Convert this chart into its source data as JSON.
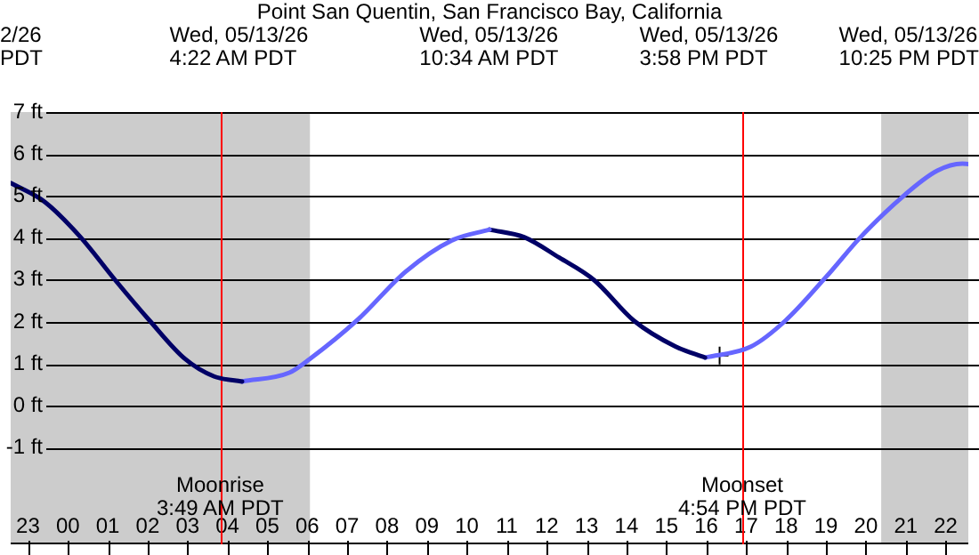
{
  "chart_data": {
    "type": "line",
    "title": "Point San Quentin, San Francisco Bay, California",
    "xlim": [
      "--05-12T22:34",
      "--05-13T22:34"
    ],
    "ylim": [
      -3.3,
      7
    ],
    "xticks": [
      {
        "value": "--05-12T23:00",
        "label": "23"
      },
      {
        "value": "--05-13T00:00",
        "label": "00"
      },
      {
        "value": "--05-13T01:00",
        "label": "01"
      },
      {
        "value": "--05-13T02:00",
        "label": "02"
      },
      {
        "value": "--05-13T03:00",
        "label": "03"
      },
      {
        "value": "--05-13T04:00",
        "label": "04"
      },
      {
        "value": "--05-13T05:00",
        "label": "05"
      },
      {
        "value": "--05-13T06:00",
        "label": "06"
      },
      {
        "value": "--05-13T07:00",
        "label": "07"
      },
      {
        "value": "--05-13T08:00",
        "label": "08"
      },
      {
        "value": "--05-13T09:00",
        "label": "09"
      },
      {
        "value": "--05-13T10:00",
        "label": "10"
      },
      {
        "value": "--05-13T11:00",
        "label": "11"
      },
      {
        "value": "--05-13T12:00",
        "label": "12"
      },
      {
        "value": "--05-13T13:00",
        "label": "13"
      },
      {
        "value": "--05-13T14:00",
        "label": "14"
      },
      {
        "value": "--05-13T15:00",
        "label": "15"
      },
      {
        "value": "--05-13T16:00",
        "label": "16"
      },
      {
        "value": "--05-13T17:00",
        "label": "17"
      },
      {
        "value": "--05-13T18:00",
        "label": "18"
      },
      {
        "value": "--05-13T19:00",
        "label": "19"
      },
      {
        "value": "--05-13T20:00",
        "label": "20"
      },
      {
        "value": "--05-13T21:00",
        "label": "21"
      },
      {
        "value": "--05-13T22:00",
        "label": "22"
      }
    ],
    "yticks": [
      {
        "value": -1,
        "label": "-1 ft"
      },
      {
        "value": 0,
        "label": "0 ft"
      },
      {
        "value": 1,
        "label": "1 ft"
      },
      {
        "value": 2,
        "label": "2 ft"
      },
      {
        "value": 3,
        "label": "3 ft"
      },
      {
        "value": 4,
        "label": "4 ft"
      },
      {
        "value": 5,
        "label": "5 ft"
      },
      {
        "value": 6,
        "label": "6 ft"
      },
      {
        "value": 7,
        "label": "7 ft"
      }
    ],
    "grid": "y",
    "legend": false,
    "series": [
      {
        "color": "#000066",
        "x": [
          "--05-12T22:34",
          "--05-12T23:26",
          "--05-13T00:19",
          "--05-13T01:11",
          "--05-13T02:03",
          "--05-13T02:56",
          "--05-13T03:40",
          "--05-13T04:22"
        ],
        "values": [
          5.31,
          4.85,
          4.02,
          3.0,
          2.03,
          1.12,
          0.7,
          0.58
        ]
      },
      {
        "color": "#6666ff",
        "x": [
          "--05-13T04:22",
          "--05-13T05:33",
          "--05-13T06:04",
          "--05-13T07:17",
          "--05-13T08:28",
          "--05-13T09:37",
          "--05-13T10:34"
        ],
        "values": [
          0.58,
          0.79,
          1.12,
          2.07,
          3.2,
          3.94,
          4.2
        ]
      },
      {
        "color": "#000066",
        "x": [
          "--05-13T10:34",
          "--05-13T11:26",
          "--05-13T12:19",
          "--05-13T13:11",
          "--05-13T14:11",
          "--05-13T15:14",
          "--05-13T15:58"
        ],
        "values": [
          4.2,
          4.02,
          3.53,
          3.0,
          2.03,
          1.41,
          1.15
        ]
      },
      {
        "color": "#6666ff",
        "x": [
          "--05-13T15:58",
          "--05-13T17:07",
          "--05-13T17:59",
          "--05-13T19:00",
          "--05-13T19:52",
          "--05-13T20:55",
          "--05-13T21:47",
          "--05-13T22:25",
          "--05-13T22:34"
        ],
        "values": [
          1.15,
          1.41,
          2.03,
          3.07,
          4.02,
          4.98,
          5.6,
          5.77,
          5.76
        ]
      },
      {
        "type": "scatter",
        "marker": "cross",
        "color": "#000000",
        "x": [
          "--05-13T16:20"
        ],
        "values": [
          1.2
        ]
      }
    ],
    "bands": [
      {
        "axis": "x",
        "from": "--05-12T22:34",
        "to": "--05-13T06:04",
        "color": "#cccccc"
      },
      {
        "axis": "x",
        "from": "--05-13T20:23",
        "to": "--05-13T22:34",
        "color": "#cccccc"
      }
    ],
    "ref_lines": [
      {
        "axis": "x",
        "value": "--05-13T03:49",
        "label": "Moonrise\n3:49 AM PDT",
        "color": "#ff0000"
      },
      {
        "axis": "x",
        "value": "--05-13T16:54",
        "label": "Moonset\n4:54 PM PDT",
        "color": "#ff0000"
      }
    ],
    "annotations": [
      "2/26\nPDT",
      "Wed, 05/13/26\n4:22 AM PDT",
      "Wed, 05/13/26\n10:34 AM PDT",
      "Wed, 05/13/26\n3:58 PM PDT",
      "Wed, 05/13/26\n10:25 PM PDT"
    ]
  }
}
